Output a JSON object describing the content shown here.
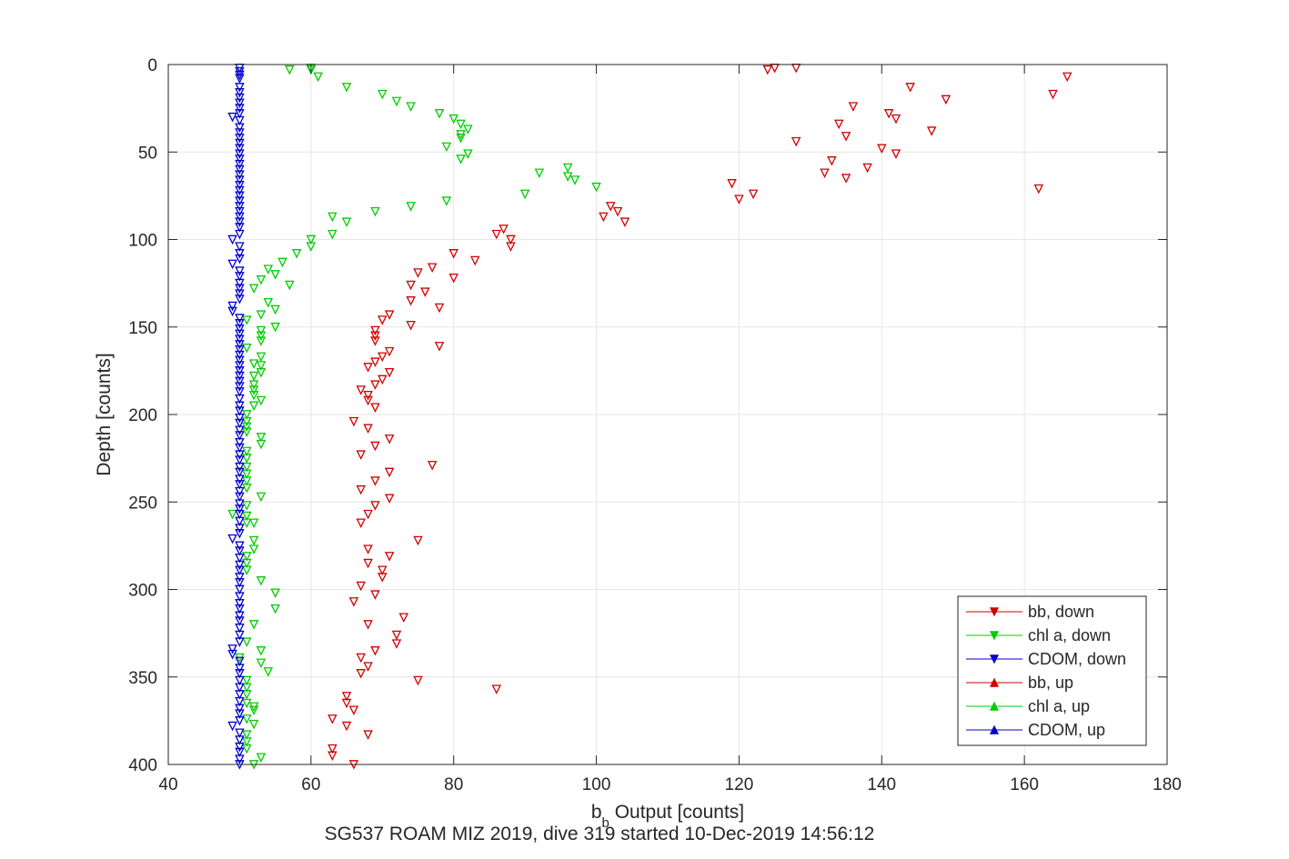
{
  "chart_data": {
    "type": "scatter",
    "xlabel_main": "b",
    "xlabel_sub": "b",
    "xlabel_rest": " Output [counts]",
    "ylabel": "Depth [counts]",
    "caption": "SG537 ROAM MIZ 2019, dive 319 started 10-Dec-2019 14:56:12",
    "xlim": [
      40,
      180
    ],
    "ylim": [
      0,
      400
    ],
    "y_reversed": true,
    "grid": true,
    "legend_position": "bottom-right",
    "x_ticks": [
      40,
      60,
      80,
      100,
      120,
      140,
      160,
      180
    ],
    "y_ticks": [
      0,
      50,
      100,
      150,
      200,
      250,
      300,
      350,
      400
    ],
    "series": [
      {
        "name": "bb, down",
        "color": "#d00000",
        "marker": "triangle-down",
        "points": [
          [
            124,
            3
          ],
          [
            125,
            2
          ],
          [
            128,
            2
          ],
          [
            166,
            7
          ],
          [
            144,
            13
          ],
          [
            164,
            17
          ],
          [
            149,
            20
          ],
          [
            136,
            24
          ],
          [
            141,
            28
          ],
          [
            142,
            31
          ],
          [
            134,
            34
          ],
          [
            147,
            38
          ],
          [
            135,
            41
          ],
          [
            128,
            44
          ],
          [
            140,
            48
          ],
          [
            142,
            51
          ],
          [
            133,
            55
          ],
          [
            138,
            59
          ],
          [
            132,
            62
          ],
          [
            135,
            65
          ],
          [
            119,
            68
          ],
          [
            162,
            71
          ],
          [
            122,
            74
          ],
          [
            120,
            77
          ],
          [
            102,
            81
          ],
          [
            103,
            84
          ],
          [
            101,
            87
          ],
          [
            104,
            90
          ],
          [
            87,
            94
          ],
          [
            86,
            97
          ],
          [
            88,
            100
          ],
          [
            88,
            104
          ],
          [
            80,
            108
          ],
          [
            83,
            112
          ],
          [
            77,
            116
          ],
          [
            75,
            119
          ],
          [
            80,
            122
          ],
          [
            74,
            126
          ],
          [
            76,
            130
          ],
          [
            74,
            135
          ],
          [
            78,
            139
          ],
          [
            71,
            143
          ],
          [
            70,
            146
          ],
          [
            74,
            149
          ],
          [
            69,
            152
          ],
          [
            69,
            155
          ],
          [
            69,
            158
          ],
          [
            78,
            161
          ],
          [
            71,
            164
          ],
          [
            70,
            167
          ],
          [
            69,
            170
          ],
          [
            68,
            173
          ],
          [
            71,
            176
          ],
          [
            70,
            180
          ],
          [
            69,
            183
          ],
          [
            67,
            186
          ],
          [
            68,
            189
          ],
          [
            68,
            192
          ],
          [
            69,
            196
          ],
          [
            66,
            204
          ],
          [
            68,
            208
          ],
          [
            71,
            214
          ],
          [
            69,
            218
          ],
          [
            67,
            223
          ],
          [
            77,
            229
          ],
          [
            71,
            233
          ],
          [
            69,
            238
          ],
          [
            67,
            243
          ],
          [
            71,
            248
          ],
          [
            69,
            252
          ],
          [
            68,
            257
          ],
          [
            67,
            262
          ],
          [
            75,
            272
          ],
          [
            68,
            277
          ],
          [
            71,
            281
          ],
          [
            68,
            285
          ],
          [
            70,
            289
          ],
          [
            70,
            293
          ],
          [
            67,
            298
          ],
          [
            69,
            303
          ],
          [
            66,
            307
          ],
          [
            73,
            316
          ],
          [
            68,
            320
          ],
          [
            72,
            326
          ],
          [
            72,
            331
          ],
          [
            69,
            335
          ],
          [
            67,
            339
          ],
          [
            68,
            344
          ],
          [
            67,
            348
          ],
          [
            75,
            352
          ],
          [
            86,
            357
          ],
          [
            65,
            361
          ],
          [
            65,
            365
          ],
          [
            66,
            369
          ],
          [
            63,
            374
          ],
          [
            65,
            378
          ],
          [
            68,
            383
          ],
          [
            63,
            391
          ],
          [
            63,
            395
          ],
          [
            66,
            400
          ]
        ]
      },
      {
        "name": "chl a, down",
        "color": "#00cc00",
        "marker": "triangle-down",
        "points": [
          [
            60,
            2
          ],
          [
            60,
            3
          ],
          [
            57,
            3
          ],
          [
            61,
            7
          ],
          [
            65,
            13
          ],
          [
            70,
            17
          ],
          [
            72,
            21
          ],
          [
            74,
            24
          ],
          [
            78,
            28
          ],
          [
            80,
            31
          ],
          [
            81,
            34
          ],
          [
            82,
            37
          ],
          [
            81,
            40
          ],
          [
            81,
            42
          ],
          [
            79,
            47
          ],
          [
            82,
            51
          ],
          [
            81,
            54
          ],
          [
            96,
            59
          ],
          [
            92,
            62
          ],
          [
            96,
            64
          ],
          [
            97,
            66
          ],
          [
            100,
            70
          ],
          [
            90,
            74
          ],
          [
            79,
            78
          ],
          [
            74,
            81
          ],
          [
            69,
            84
          ],
          [
            63,
            87
          ],
          [
            65,
            90
          ],
          [
            63,
            97
          ],
          [
            60,
            100
          ],
          [
            60,
            104
          ],
          [
            58,
            108
          ],
          [
            56,
            113
          ],
          [
            54,
            117
          ],
          [
            55,
            120
          ],
          [
            53,
            123
          ],
          [
            57,
            126
          ],
          [
            52,
            128
          ],
          [
            54,
            136
          ],
          [
            55,
            140
          ],
          [
            53,
            143
          ],
          [
            51,
            146
          ],
          [
            55,
            150
          ],
          [
            53,
            152
          ],
          [
            53,
            155
          ],
          [
            53,
            158
          ],
          [
            51,
            162
          ],
          [
            53,
            167
          ],
          [
            52,
            171
          ],
          [
            53,
            172
          ],
          [
            53,
            176
          ],
          [
            52,
            178
          ],
          [
            52,
            183
          ],
          [
            52,
            186
          ],
          [
            52,
            189
          ],
          [
            53,
            192
          ],
          [
            52,
            195
          ],
          [
            51,
            200
          ],
          [
            51,
            204
          ],
          [
            51,
            207
          ],
          [
            51,
            210
          ],
          [
            53,
            213
          ],
          [
            53,
            217
          ],
          [
            51,
            221
          ],
          [
            51,
            225
          ],
          [
            51,
            230
          ],
          [
            51,
            234
          ],
          [
            51,
            238
          ],
          [
            51,
            242
          ],
          [
            53,
            247
          ],
          [
            51,
            252
          ],
          [
            49,
            257
          ],
          [
            51,
            258
          ],
          [
            51,
            262
          ],
          [
            52,
            262
          ],
          [
            52,
            272
          ],
          [
            52,
            277
          ],
          [
            51,
            281
          ],
          [
            51,
            285
          ],
          [
            51,
            289
          ],
          [
            53,
            295
          ],
          [
            55,
            302
          ],
          [
            55,
            311
          ],
          [
            52,
            320
          ],
          [
            51,
            330
          ],
          [
            53,
            335
          ],
          [
            50,
            339
          ],
          [
            53,
            342
          ],
          [
            54,
            347
          ],
          [
            51,
            352
          ],
          [
            51,
            356
          ],
          [
            51,
            360
          ],
          [
            51,
            365
          ],
          [
            52,
            367
          ],
          [
            52,
            369
          ],
          [
            51,
            374
          ],
          [
            52,
            377
          ],
          [
            51,
            383
          ],
          [
            51,
            387
          ],
          [
            51,
            391
          ],
          [
            53,
            396
          ],
          [
            52,
            400
          ]
        ]
      },
      {
        "name": "CDOM, down",
        "color": "#0000cc",
        "marker": "triangle-down",
        "points": [
          [
            50,
            2
          ],
          [
            50,
            4
          ],
          [
            50,
            6
          ],
          [
            50,
            8
          ],
          [
            50,
            13
          ],
          [
            50,
            16
          ],
          [
            50,
            19
          ],
          [
            50,
            22
          ],
          [
            50,
            25
          ],
          [
            50,
            28
          ],
          [
            49,
            30
          ],
          [
            50,
            32
          ],
          [
            50,
            36
          ],
          [
            50,
            39
          ],
          [
            50,
            42
          ],
          [
            50,
            45
          ],
          [
            50,
            48
          ],
          [
            50,
            51
          ],
          [
            50,
            54
          ],
          [
            50,
            57
          ],
          [
            50,
            60
          ],
          [
            50,
            63
          ],
          [
            50,
            66
          ],
          [
            50,
            69
          ],
          [
            50,
            72
          ],
          [
            50,
            75
          ],
          [
            50,
            78
          ],
          [
            50,
            81
          ],
          [
            50,
            84
          ],
          [
            50,
            87
          ],
          [
            50,
            90
          ],
          [
            50,
            93
          ],
          [
            50,
            97
          ],
          [
            49,
            100
          ],
          [
            50,
            104
          ],
          [
            50,
            108
          ],
          [
            50,
            111
          ],
          [
            49,
            114
          ],
          [
            50,
            118
          ],
          [
            50,
            121
          ],
          [
            50,
            125
          ],
          [
            50,
            128
          ],
          [
            50,
            131
          ],
          [
            50,
            134
          ],
          [
            49,
            138
          ],
          [
            49,
            141
          ],
          [
            50,
            145
          ],
          [
            50,
            148
          ],
          [
            50,
            151
          ],
          [
            50,
            154
          ],
          [
            50,
            157
          ],
          [
            50,
            160
          ],
          [
            50,
            163
          ],
          [
            50,
            166
          ],
          [
            50,
            169
          ],
          [
            50,
            172
          ],
          [
            50,
            175
          ],
          [
            50,
            178
          ],
          [
            50,
            181
          ],
          [
            50,
            184
          ],
          [
            50,
            187
          ],
          [
            50,
            191
          ],
          [
            50,
            195
          ],
          [
            50,
            198
          ],
          [
            50,
            202
          ],
          [
            50,
            205
          ],
          [
            50,
            209
          ],
          [
            50,
            212
          ],
          [
            50,
            216
          ],
          [
            50,
            219
          ],
          [
            50,
            223
          ],
          [
            50,
            226
          ],
          [
            50,
            230
          ],
          [
            50,
            233
          ],
          [
            50,
            237
          ],
          [
            50,
            240
          ],
          [
            50,
            244
          ],
          [
            50,
            247
          ],
          [
            50,
            251
          ],
          [
            50,
            254
          ],
          [
            50,
            257
          ],
          [
            50,
            261
          ],
          [
            50,
            265
          ],
          [
            50,
            268
          ],
          [
            49,
            271
          ],
          [
            50,
            275
          ],
          [
            50,
            278
          ],
          [
            50,
            282
          ],
          [
            50,
            286
          ],
          [
            50,
            289
          ],
          [
            50,
            293
          ],
          [
            50,
            296
          ],
          [
            50,
            300
          ],
          [
            50,
            304
          ],
          [
            50,
            308
          ],
          [
            50,
            311
          ],
          [
            50,
            315
          ],
          [
            50,
            318
          ],
          [
            50,
            322
          ],
          [
            50,
            326
          ],
          [
            50,
            330
          ],
          [
            49,
            334
          ],
          [
            49,
            337
          ],
          [
            50,
            341
          ],
          [
            50,
            345
          ],
          [
            50,
            348
          ],
          [
            50,
            352
          ],
          [
            50,
            356
          ],
          [
            50,
            360
          ],
          [
            50,
            364
          ],
          [
            50,
            368
          ],
          [
            50,
            371
          ],
          [
            50,
            375
          ],
          [
            49,
            378
          ],
          [
            50,
            382
          ],
          [
            50,
            386
          ],
          [
            50,
            390
          ],
          [
            50,
            393
          ],
          [
            50,
            397
          ],
          [
            50,
            400
          ]
        ]
      },
      {
        "name": "bb, up",
        "color": "#d00000",
        "marker": "triangle-up",
        "points": []
      },
      {
        "name": "chl a, up",
        "color": "#00cc00",
        "marker": "triangle-up",
        "points": []
      },
      {
        "name": "CDOM, up",
        "color": "#0000cc",
        "marker": "triangle-up",
        "points": []
      }
    ]
  }
}
